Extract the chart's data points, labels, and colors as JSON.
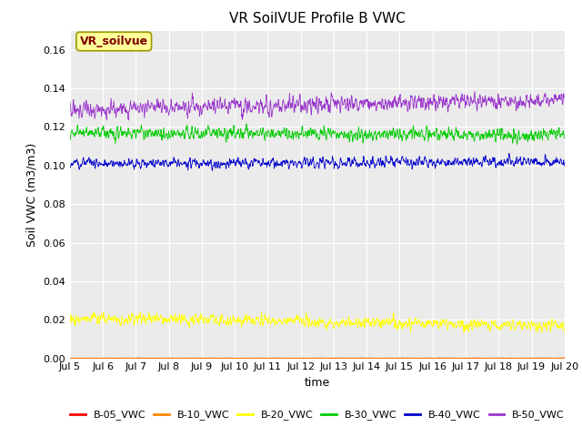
{
  "title": "VR SoilVUE Profile B VWC",
  "xlabel": "time",
  "ylabel": "Soil VWC (m3/m3)",
  "ylim": [
    0.0,
    0.17
  ],
  "yticks": [
    0.0,
    0.02,
    0.04,
    0.06,
    0.08,
    0.1,
    0.12,
    0.14,
    0.16
  ],
  "xstart_day": 5,
  "xend_day": 20,
  "n_points": 1500,
  "series": {
    "B-05_VWC": {
      "color": "#ff0000",
      "mean": 0.0001,
      "std": 8e-05,
      "trend": 0.0
    },
    "B-10_VWC": {
      "color": "#ff8800",
      "mean": 0.0001,
      "std": 8e-05,
      "trend": 0.0
    },
    "B-20_VWC": {
      "color": "#ffff00",
      "mean": 0.021,
      "std": 0.0025,
      "trend": -0.004
    },
    "B-30_VWC": {
      "color": "#00cc00",
      "mean": 0.117,
      "std": 0.0028,
      "trend": -0.001
    },
    "B-40_VWC": {
      "color": "#0000cc",
      "mean": 0.101,
      "std": 0.0022,
      "trend": 0.001
    },
    "B-50_VWC": {
      "color": "#9933cc",
      "mean": 0.129,
      "std": 0.0035,
      "trend": 0.005
    }
  },
  "legend_label": "VR_soilvue",
  "legend_text_color": "#800000",
  "legend_bg_color": "#ffff99",
  "legend_edge_color": "#999900",
  "bg_color": "#ebebeb",
  "title_fontsize": 11,
  "tick_fontsize": 8,
  "ylabel_fontsize": 9,
  "xlabel_fontsize": 9
}
